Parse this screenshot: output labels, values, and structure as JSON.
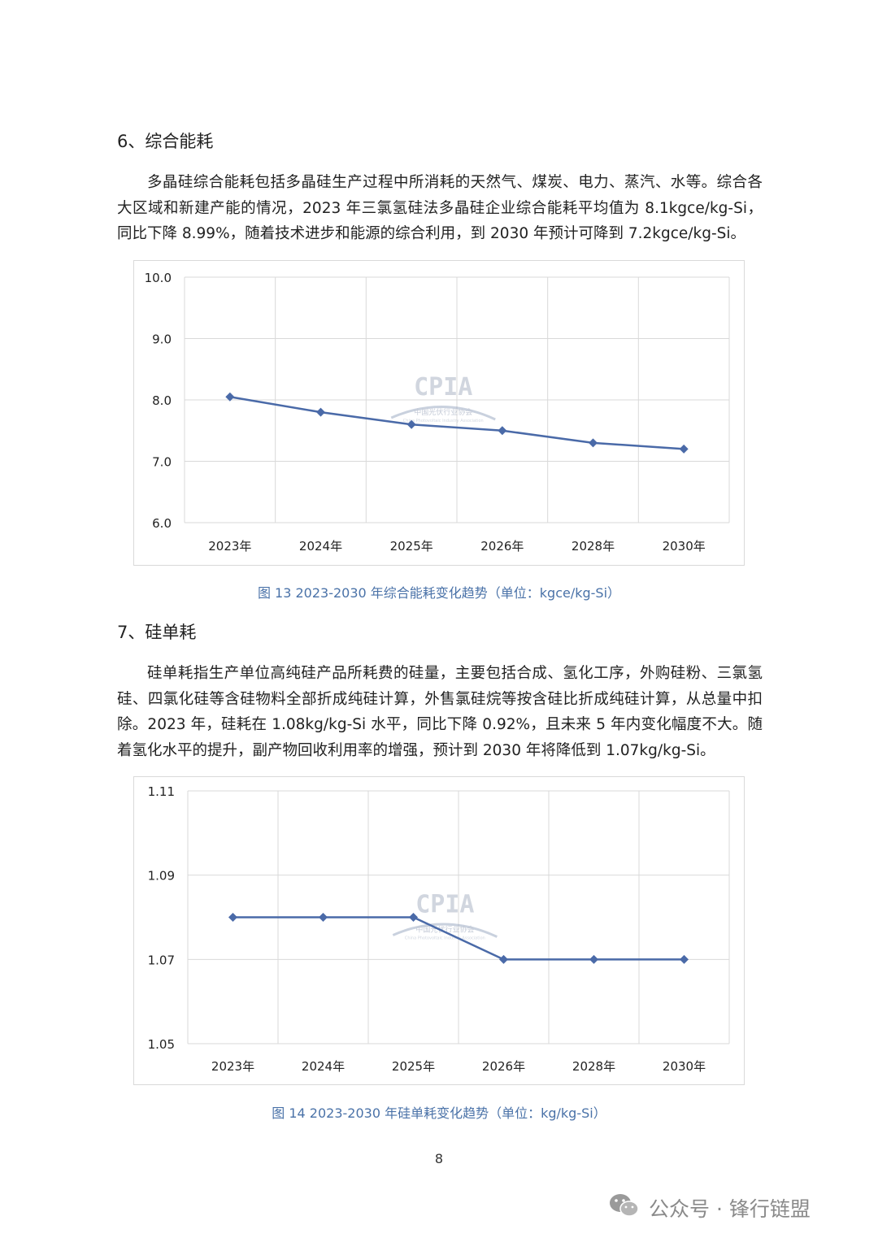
{
  "section6": {
    "heading": "6、综合能耗",
    "paragraph": "多晶硅综合能耗包括多晶硅生产过程中所消耗的天然气、煤炭、电力、蒸汽、水等。综合各大区域和新建产能的情况，2023 年三氯氢硅法多晶硅企业综合能耗平均值为 8.1kgce/kg-Si，同比下降 8.99%，随着技术进步和能源的综合利用，到 2030 年预计可降到 7.2kgce/kg-Si。"
  },
  "section7": {
    "heading": "7、硅单耗",
    "paragraph": "硅单耗指生产单位高纯硅产品所耗费的硅量，主要包括合成、氢化工序，外购硅粉、三氯氢硅、四氯化硅等含硅物料全部折成纯硅计算，外售氯硅烷等按含硅比折成纯硅计算，从总量中扣除。2023 年，硅耗在 1.08kg/kg-Si 水平，同比下降 0.92%，且未来 5 年内变化幅度不大。随着氢化水平的提升，副产物回收利用率的增强，预计到 2030 年将降低到 1.07kg/kg-Si。"
  },
  "watermark": {
    "brand": "CPIA",
    "org": "中国光伏行业协会",
    "org_en": "China Photovoltaic Industry Association"
  },
  "chart_data": [
    {
      "type": "line",
      "categories": [
        "2023年",
        "2024年",
        "2025年",
        "2026年",
        "2028年",
        "2030年"
      ],
      "series": [
        {
          "values": [
            8.05,
            7.8,
            7.6,
            7.5,
            7.3,
            7.2
          ]
        }
      ],
      "ylim": [
        6.0,
        10.0
      ],
      "yticks": [
        "6.0",
        "7.0",
        "8.0",
        "9.0",
        "10.0"
      ],
      "grid": true,
      "line_color": "#4a6aa8",
      "caption": "图 13   2023-2030 年综合能耗变化趋势（单位：kgce/kg-Si）"
    },
    {
      "type": "line",
      "categories": [
        "2023年",
        "2024年",
        "2025年",
        "2026年",
        "2028年",
        "2030年"
      ],
      "series": [
        {
          "values": [
            1.08,
            1.08,
            1.08,
            1.07,
            1.07,
            1.07
          ]
        }
      ],
      "ylim": [
        1.05,
        1.11
      ],
      "yticks": [
        "1.05",
        "1.07",
        "1.09",
        "1.11"
      ],
      "grid": true,
      "line_color": "#4a6aa8",
      "caption": "图 14   2023-2030 年硅单耗变化趋势（单位：kg/kg-Si）"
    }
  ],
  "page_number": "8",
  "footer": {
    "wechat_label": "公众号 · 锋行链盟",
    "icon": "wechat-icon"
  }
}
